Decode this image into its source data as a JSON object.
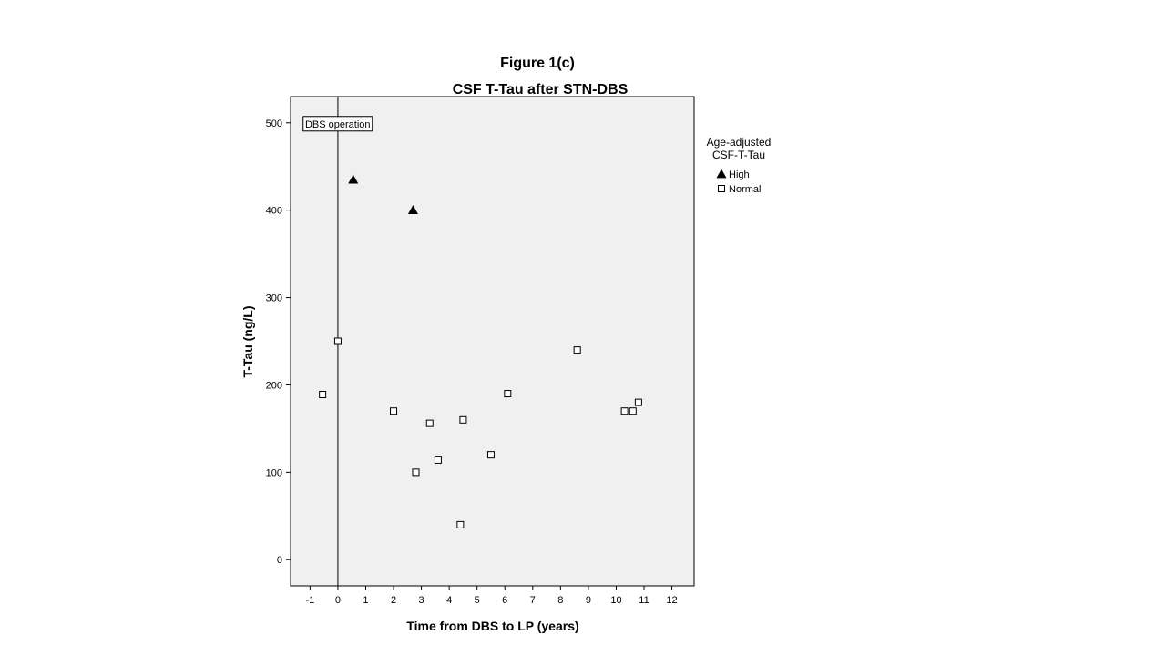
{
  "figure_label": "Figure 1(c)",
  "chart_data": {
    "type": "scatter",
    "title": "CSF T-Tau after STN-DBS",
    "xlabel": "Time from DBS to LP (years)",
    "ylabel": "T-Tau (ng/L)",
    "xlim": [
      -1.7,
      12.8
    ],
    "ylim": [
      -30,
      530
    ],
    "xticks": [
      -1,
      0,
      1,
      2,
      3,
      4,
      5,
      6,
      7,
      8,
      9,
      10,
      11,
      12
    ],
    "yticks": [
      0,
      100,
      200,
      300,
      400,
      500
    ],
    "grid": false,
    "reference_line": {
      "x": 0,
      "label": "DBS operation"
    },
    "legend": {
      "title_line1": "Age-adjusted",
      "title_line2": "CSF-T-Tau",
      "placement": "right"
    },
    "series": [
      {
        "name": "High",
        "marker": "triangle",
        "color": "#000000",
        "points": [
          [
            0.55,
            435
          ],
          [
            2.7,
            400
          ]
        ]
      },
      {
        "name": "Normal",
        "marker": "square",
        "color": "#000000",
        "points": [
          [
            -0.55,
            189
          ],
          [
            0.0,
            250
          ],
          [
            2.0,
            170
          ],
          [
            2.8,
            100
          ],
          [
            3.3,
            156
          ],
          [
            3.6,
            114
          ],
          [
            4.4,
            40
          ],
          [
            4.5,
            160
          ],
          [
            5.5,
            120
          ],
          [
            6.1,
            190
          ],
          [
            8.6,
            240
          ],
          [
            10.3,
            170
          ],
          [
            10.6,
            170
          ],
          [
            10.8,
            180
          ]
        ]
      }
    ]
  }
}
